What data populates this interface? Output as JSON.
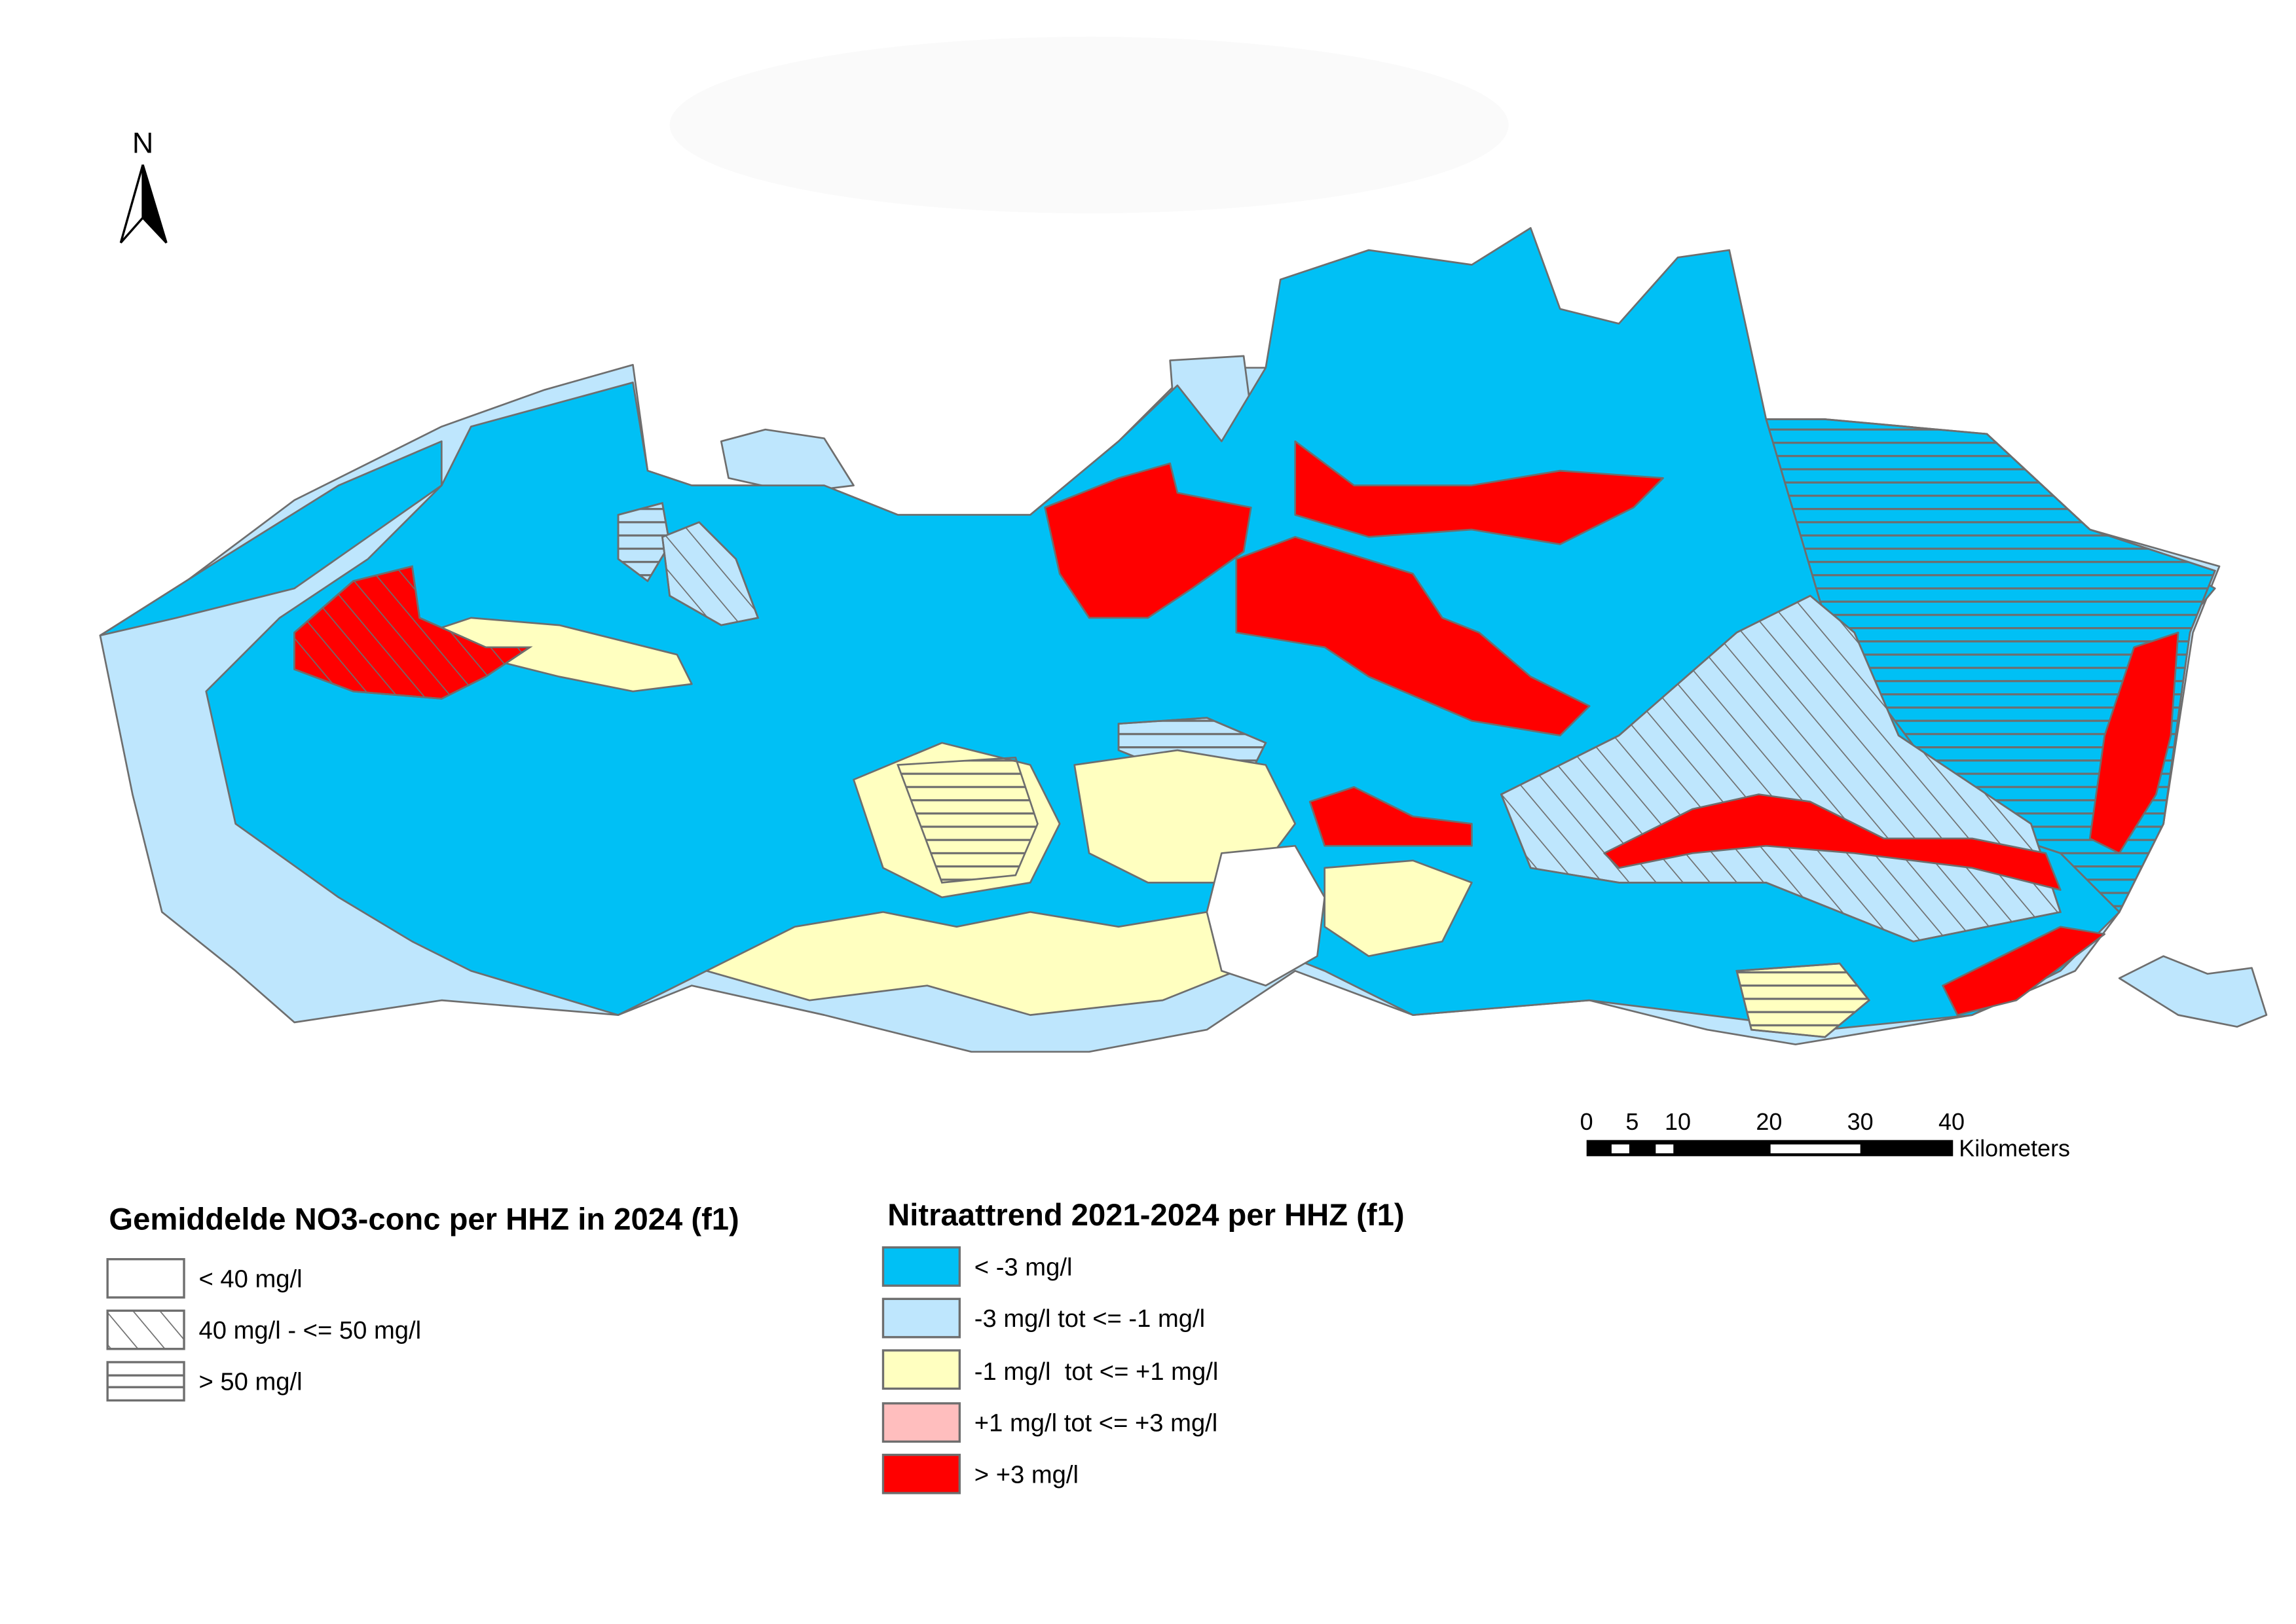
{
  "north_arrow": {
    "label": "N"
  },
  "colors": {
    "trend_lt_minus3": "#00c0f5",
    "trend_minus3_minus1": "#bee6fd",
    "trend_minus1_plus1": "#ffffc0",
    "trend_plus1_plus3": "#ffbebe",
    "trend_gt_plus3": "#ff0000",
    "outline": "#6e6e6e"
  },
  "scale_bar": {
    "ticks": [
      "0",
      "5",
      "10",
      "20",
      "30",
      "40"
    ],
    "unit": "Kilometers"
  },
  "legend_concentration": {
    "title": "Gemiddelde NO3-conc per HHZ in 2024 (f1)",
    "items": [
      {
        "label": "< 40 mg/l",
        "pattern": "none"
      },
      {
        "label": "40 mg/l - <= 50 mg/l",
        "pattern": "diagonal-hatch"
      },
      {
        "label": "> 50 mg/l",
        "pattern": "horizontal-hatch"
      }
    ]
  },
  "legend_trend": {
    "title": "Nitraattrend 2021-2024 per HHZ (f1)",
    "items": [
      {
        "label": "< -3 mg/l",
        "color": "#00c0f5"
      },
      {
        "label": "-3 mg/l tot <= -1 mg/l",
        "color": "#bee6fd"
      },
      {
        "label": "-1 mg/l  tot <= +1 mg/l",
        "color": "#ffffc0"
      },
      {
        "label": "+1 mg/l tot <= +3 mg/l",
        "color": "#ffbebe"
      },
      {
        "label": "> +3 mg/l",
        "color": "#ff0000"
      }
    ]
  }
}
